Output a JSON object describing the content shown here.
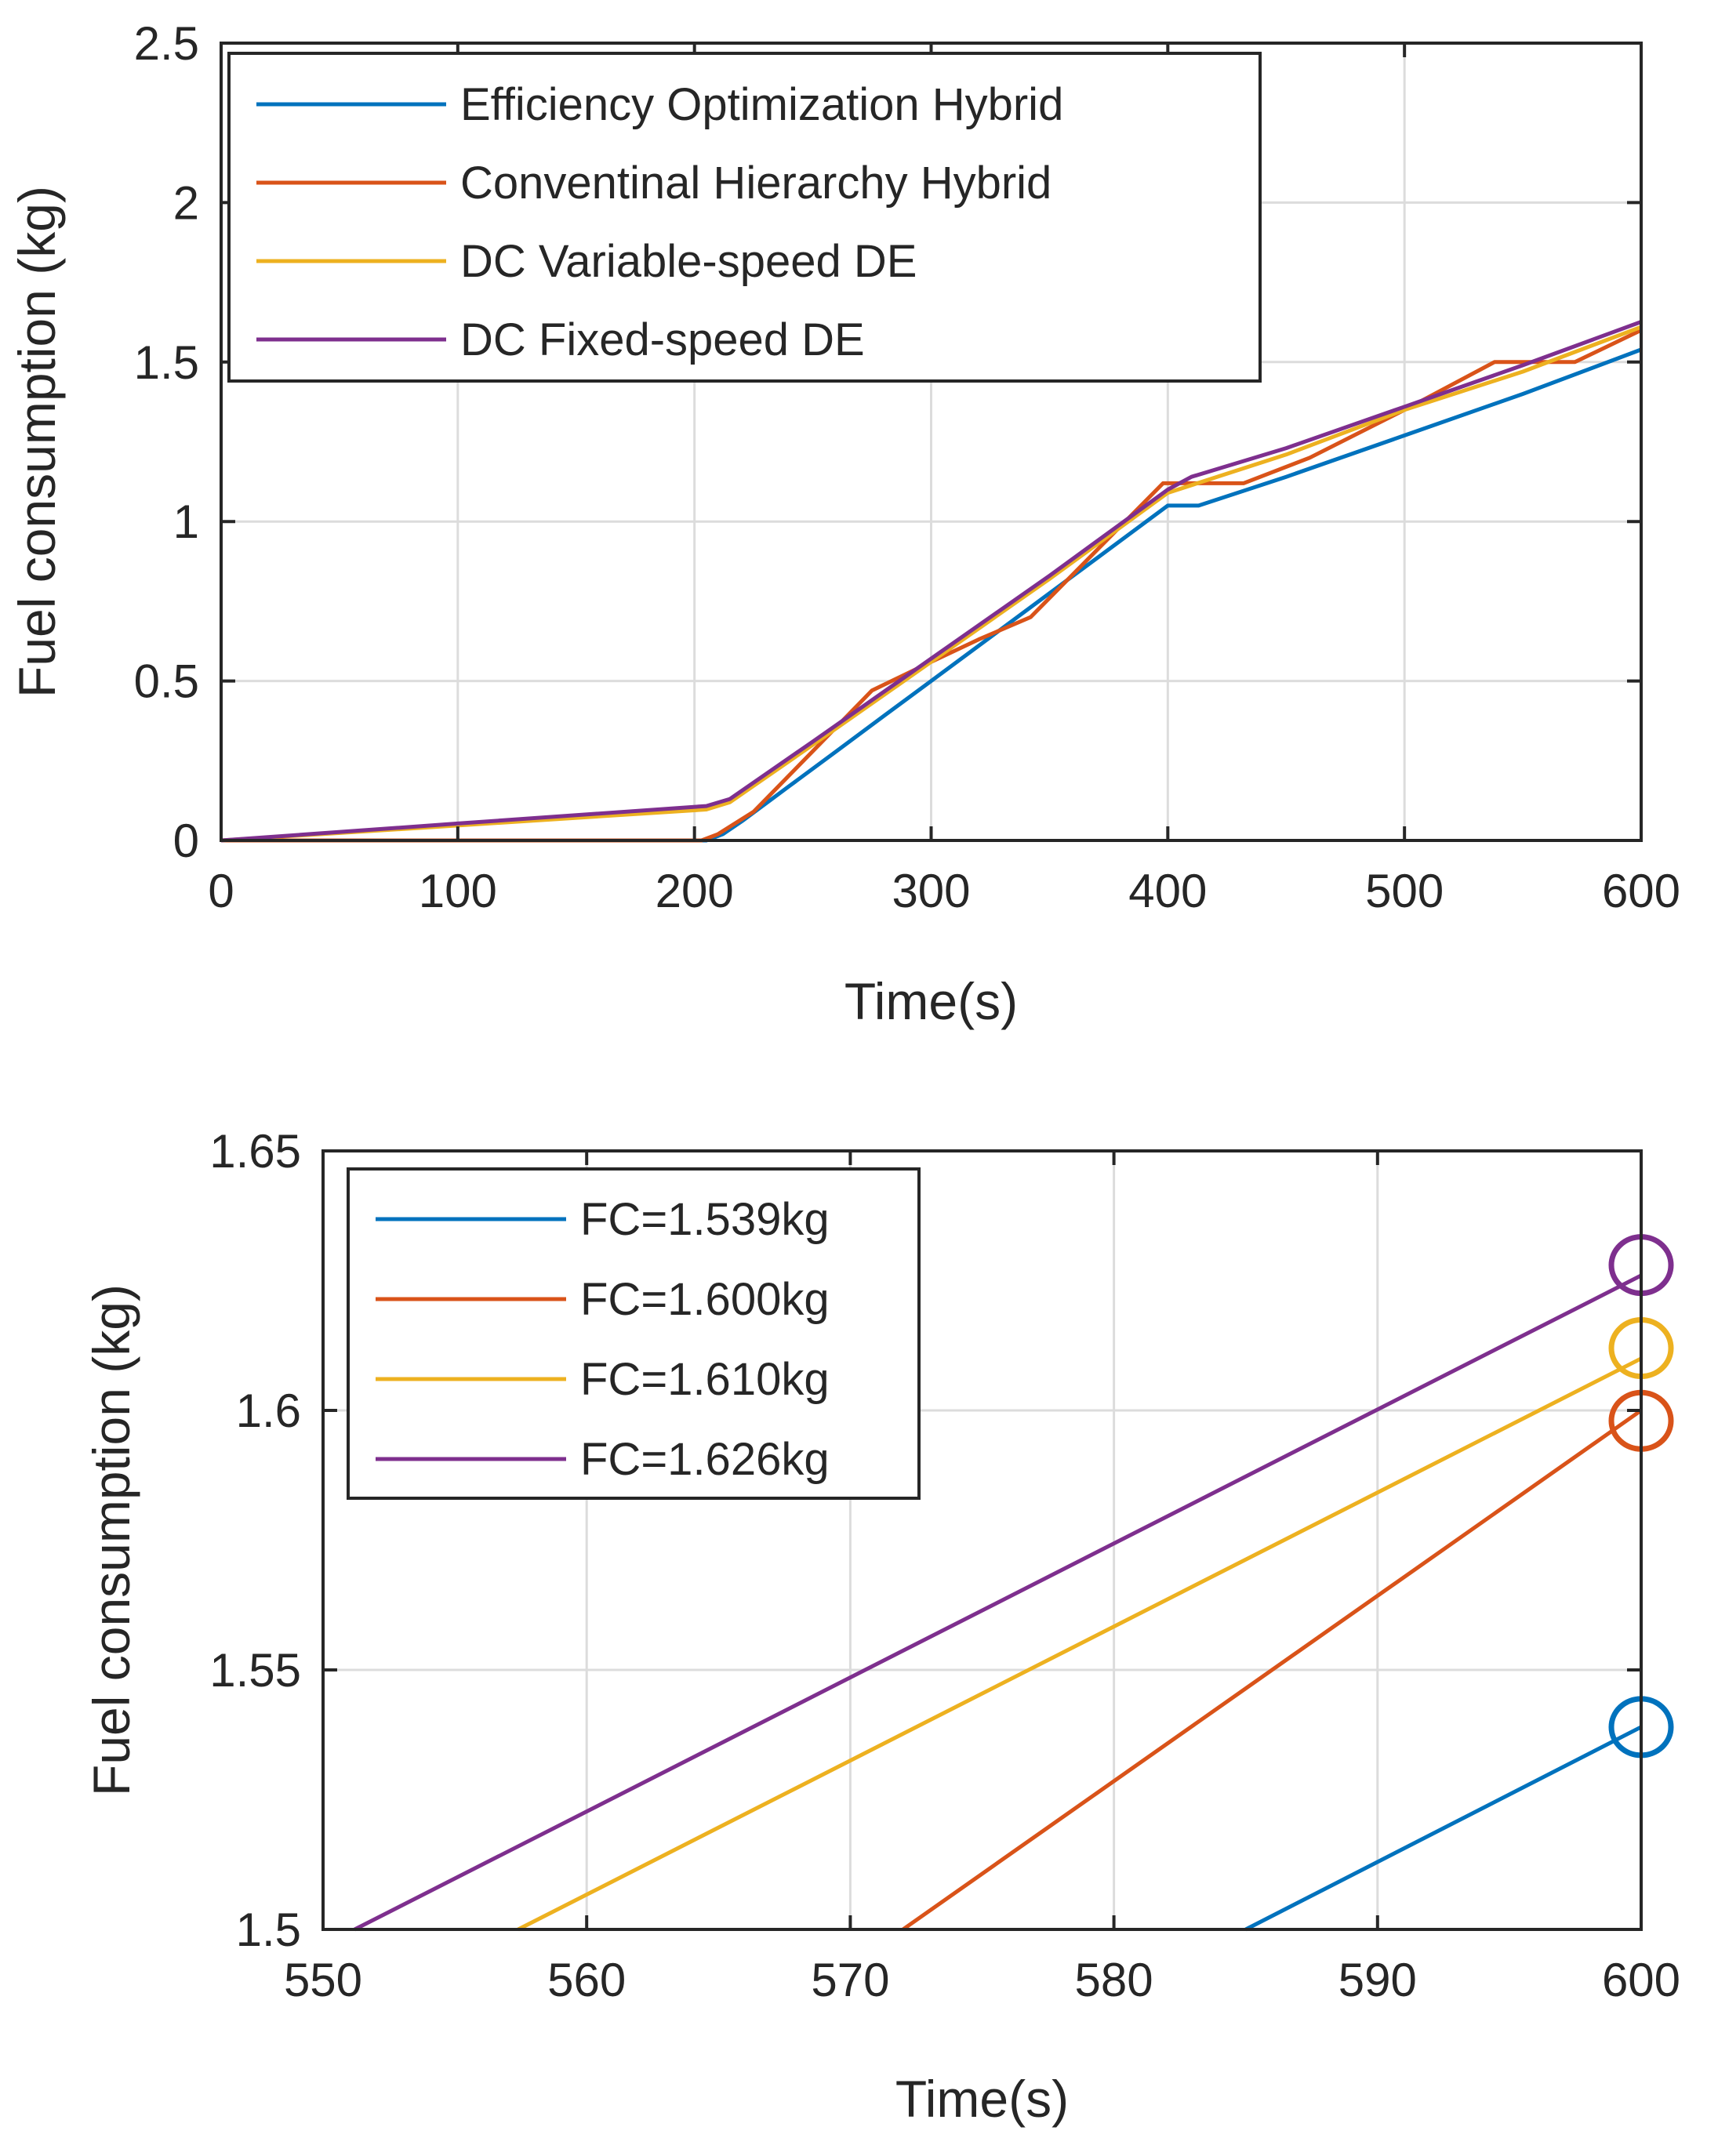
{
  "colors": {
    "blue": "#0072BD",
    "orange": "#D95319",
    "yellow": "#EDB120",
    "purple": "#7E2F8E"
  },
  "chart_data": [
    {
      "type": "line",
      "xlabel": "Time(s)",
      "ylabel": "Fuel consumption (kg)",
      "xlim": [
        0,
        600
      ],
      "ylim": [
        0,
        2.5
      ],
      "xticks": [
        0,
        100,
        200,
        300,
        400,
        500,
        600
      ],
      "xtick_labels": [
        "0",
        "100",
        "200",
        "300",
        "400",
        "500",
        "600"
      ],
      "yticks": [
        0,
        0.5,
        1,
        1.5,
        2,
        2.5
      ],
      "ytick_labels": [
        "0",
        "0.5",
        "1",
        "1.5",
        "2",
        "2.5"
      ],
      "grid": true,
      "legend_position": "top-left",
      "series": [
        {
          "name": "Efficiency Optimization Hybrid",
          "color": "#0072BD",
          "x": [
            0,
            205,
            212,
            220,
            240,
            260,
            280,
            300,
            320,
            340,
            360,
            380,
            400,
            413,
            450,
            500,
            550,
            600
          ],
          "y": [
            0,
            0,
            0.02,
            0.06,
            0.17,
            0.28,
            0.39,
            0.5,
            0.61,
            0.72,
            0.83,
            0.94,
            1.05,
            1.05,
            1.14,
            1.27,
            1.4,
            1.539
          ]
        },
        {
          "name": "Conventinal Hierarchy Hybrid",
          "color": "#D95319",
          "x": [
            0,
            203,
            210,
            225,
            250,
            275,
            300,
            320,
            342,
            370,
            398,
            405,
            432,
            460,
            500,
            538,
            553,
            572,
            600
          ],
          "y": [
            0,
            0,
            0.02,
            0.09,
            0.28,
            0.47,
            0.56,
            0.63,
            0.7,
            0.91,
            1.12,
            1.12,
            1.12,
            1.2,
            1.35,
            1.5,
            1.5,
            1.5,
            1.6
          ]
        },
        {
          "name": "DC Variable-speed DE",
          "color": "#EDB120",
          "x": [
            0,
            100,
            205,
            215,
            250,
            300,
            350,
            400,
            450,
            500,
            550,
            600
          ],
          "y": [
            0,
            0.047,
            0.097,
            0.12,
            0.3,
            0.56,
            0.82,
            1.09,
            1.21,
            1.35,
            1.47,
            1.61
          ]
        },
        {
          "name": "DC Fixed-speed DE",
          "color": "#7E2F8E",
          "x": [
            0,
            100,
            205,
            215,
            250,
            300,
            350,
            400,
            410,
            450,
            500,
            550,
            600
          ],
          "y": [
            0,
            0.053,
            0.108,
            0.13,
            0.31,
            0.57,
            0.83,
            1.1,
            1.14,
            1.23,
            1.36,
            1.49,
            1.626
          ]
        }
      ]
    },
    {
      "type": "line",
      "xlabel": "Time(s)",
      "ylabel": "Fuel consumption (kg)",
      "xlim": [
        550,
        600
      ],
      "ylim": [
        1.5,
        1.65
      ],
      "xticks": [
        550,
        560,
        570,
        580,
        590,
        600
      ],
      "xtick_labels": [
        "550",
        "560",
        "570",
        "580",
        "590",
        "600"
      ],
      "yticks": [
        1.5,
        1.55,
        1.6,
        1.65
      ],
      "ytick_labels": [
        "1.5",
        "1.55",
        "1.6",
        "1.65"
      ],
      "grid": true,
      "legend_position": "top-left",
      "series": [
        {
          "name": "FC=1.539kg",
          "color": "#0072BD",
          "x": [
            585,
            600
          ],
          "y": [
            1.5,
            1.539
          ]
        },
        {
          "name": "FC=1.600kg",
          "color": "#D95319",
          "x": [
            572,
            600
          ],
          "y": [
            1.5,
            1.6
          ]
        },
        {
          "name": "FC=1.610kg",
          "color": "#EDB120",
          "x": [
            557.4,
            600
          ],
          "y": [
            1.5,
            1.61
          ]
        },
        {
          "name": "FC=1.626kg",
          "color": "#7E2F8E",
          "x": [
            551.2,
            600
          ],
          "y": [
            1.5,
            1.626
          ]
        }
      ],
      "end_markers": [
        {
          "series": "FC=1.539kg",
          "x": 600,
          "y": 1.539
        },
        {
          "series": "FC=1.600kg",
          "x": 600,
          "y": 1.598
        },
        {
          "series": "FC=1.610kg",
          "x": 600,
          "y": 1.612
        },
        {
          "series": "FC=1.626kg",
          "x": 600,
          "y": 1.628
        }
      ]
    }
  ]
}
